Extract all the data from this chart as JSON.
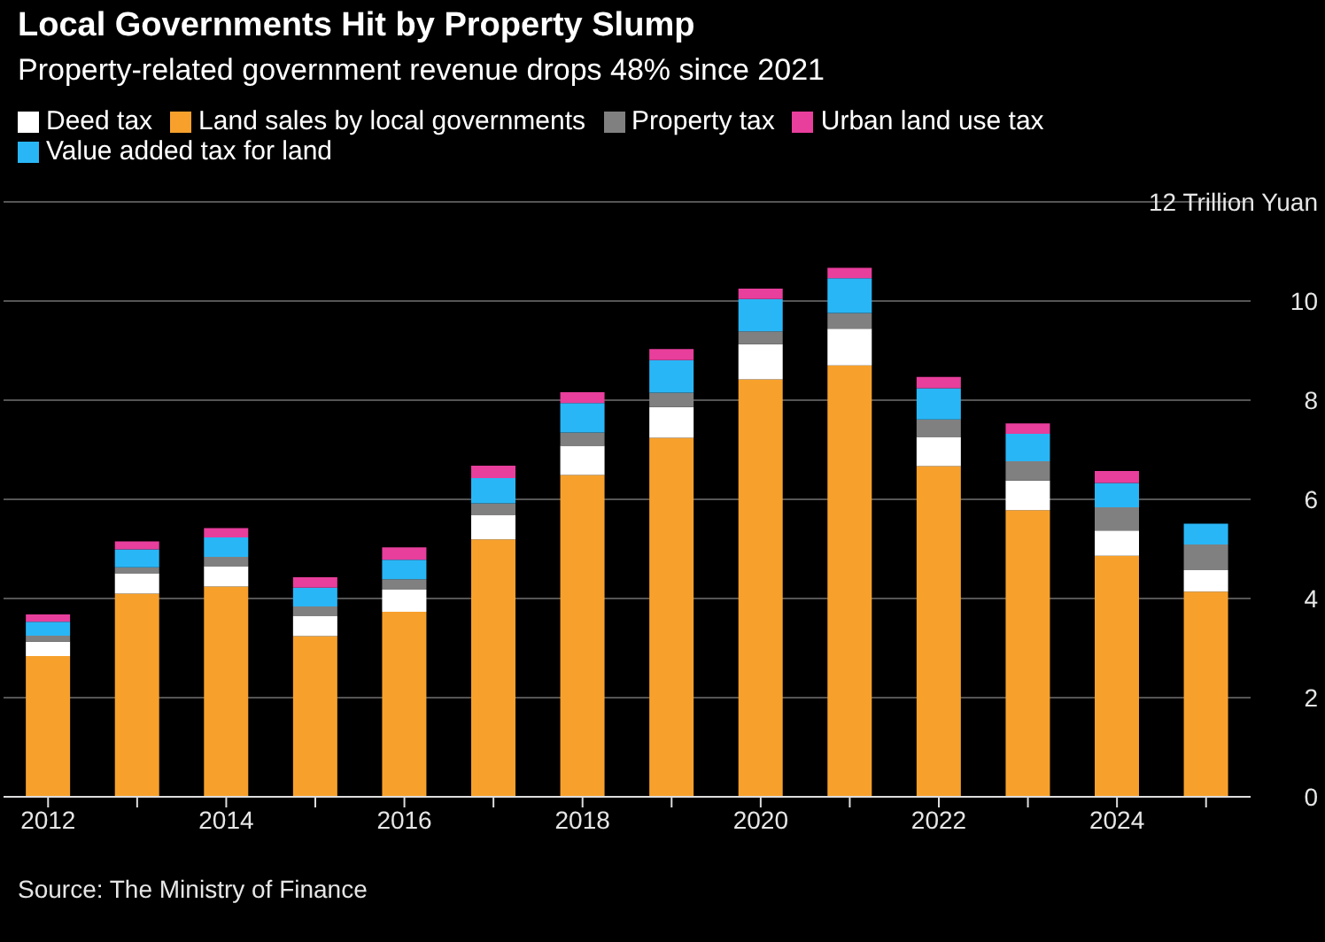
{
  "chart_data": {
    "type": "bar",
    "title": "Local Governments Hit by Property Slump",
    "subtitle": "Property-related government revenue drops 48% since 2021",
    "categories": [
      "2012",
      null,
      "2014",
      null,
      "2016",
      null,
      "2018",
      null,
      "2020",
      null,
      "2022",
      null,
      "2024",
      null
    ],
    "series": [
      {
        "name": "Land sales by local governments",
        "color": "#f7a12c",
        "values": [
          2.84,
          4.1,
          4.24,
          3.24,
          3.73,
          5.19,
          6.49,
          7.24,
          8.42,
          8.7,
          6.67,
          5.78,
          4.86,
          4.14
        ]
      },
      {
        "name": "Deed tax",
        "color": "#ffffff",
        "values": [
          0.29,
          0.41,
          0.41,
          0.41,
          0.45,
          0.49,
          0.59,
          0.62,
          0.71,
          0.74,
          0.58,
          0.6,
          0.51,
          0.43
        ]
      },
      {
        "name": "Property tax",
        "color": "#808080",
        "values": [
          0.12,
          0.12,
          0.19,
          0.19,
          0.21,
          0.24,
          0.27,
          0.29,
          0.26,
          0.32,
          0.36,
          0.39,
          0.47,
          0.52
        ]
      },
      {
        "name": "Value added tax for land",
        "color": "#29b6f6",
        "values": [
          0.28,
          0.36,
          0.39,
          0.38,
          0.39,
          0.51,
          0.59,
          0.66,
          0.65,
          0.7,
          0.63,
          0.55,
          0.49,
          0.42
        ]
      },
      {
        "name": "Urban land use tax",
        "color": "#e83e9c",
        "values": [
          0.15,
          0.16,
          0.19,
          0.21,
          0.25,
          0.25,
          0.22,
          0.22,
          0.21,
          0.21,
          0.23,
          0.21,
          0.24,
          null
        ]
      }
    ],
    "stacked": true,
    "ylim": [
      0,
      12
    ],
    "yticks": [
      0,
      2,
      4,
      6,
      8,
      10,
      {
        "value": 12,
        "label": "12 Trillion Yuan"
      }
    ],
    "grid": "y",
    "legend": "top",
    "annotations": [
      "Source: The Ministry of Finance"
    ]
  }
}
